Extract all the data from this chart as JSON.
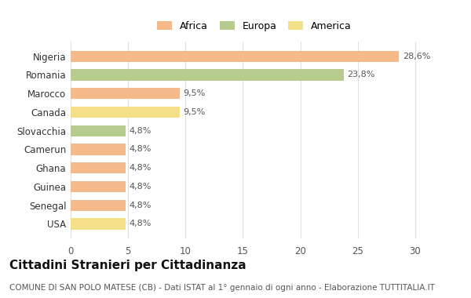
{
  "countries": [
    "Nigeria",
    "Romania",
    "Marocco",
    "Canada",
    "Slovacchia",
    "Camerun",
    "Ghana",
    "Guinea",
    "Senegal",
    "USA"
  ],
  "values": [
    28.6,
    23.8,
    9.5,
    9.5,
    4.8,
    4.8,
    4.8,
    4.8,
    4.8,
    4.8
  ],
  "labels": [
    "28,6%",
    "23,8%",
    "9,5%",
    "9,5%",
    "4,8%",
    "4,8%",
    "4,8%",
    "4,8%",
    "4,8%",
    "4,8%"
  ],
  "continents": [
    "Africa",
    "Europa",
    "Africa",
    "America",
    "Europa",
    "Africa",
    "Africa",
    "Africa",
    "Africa",
    "America"
  ],
  "colors": {
    "Africa": "#F5B98A",
    "Europa": "#B5CC8E",
    "America": "#F5E08A"
  },
  "legend_labels": [
    "Africa",
    "Europa",
    "America"
  ],
  "xlim": [
    0,
    32
  ],
  "xticks": [
    0,
    5,
    10,
    15,
    20,
    25,
    30
  ],
  "title": "Cittadini Stranieri per Cittadinanza",
  "subtitle": "COMUNE DI SAN POLO MATESE (CB) - Dati ISTAT al 1° gennaio di ogni anno - Elaborazione TUTTITALIA.IT",
  "title_fontsize": 11,
  "subtitle_fontsize": 7.5,
  "bg_color": "#ffffff",
  "grid_color": "#e0e0e0"
}
